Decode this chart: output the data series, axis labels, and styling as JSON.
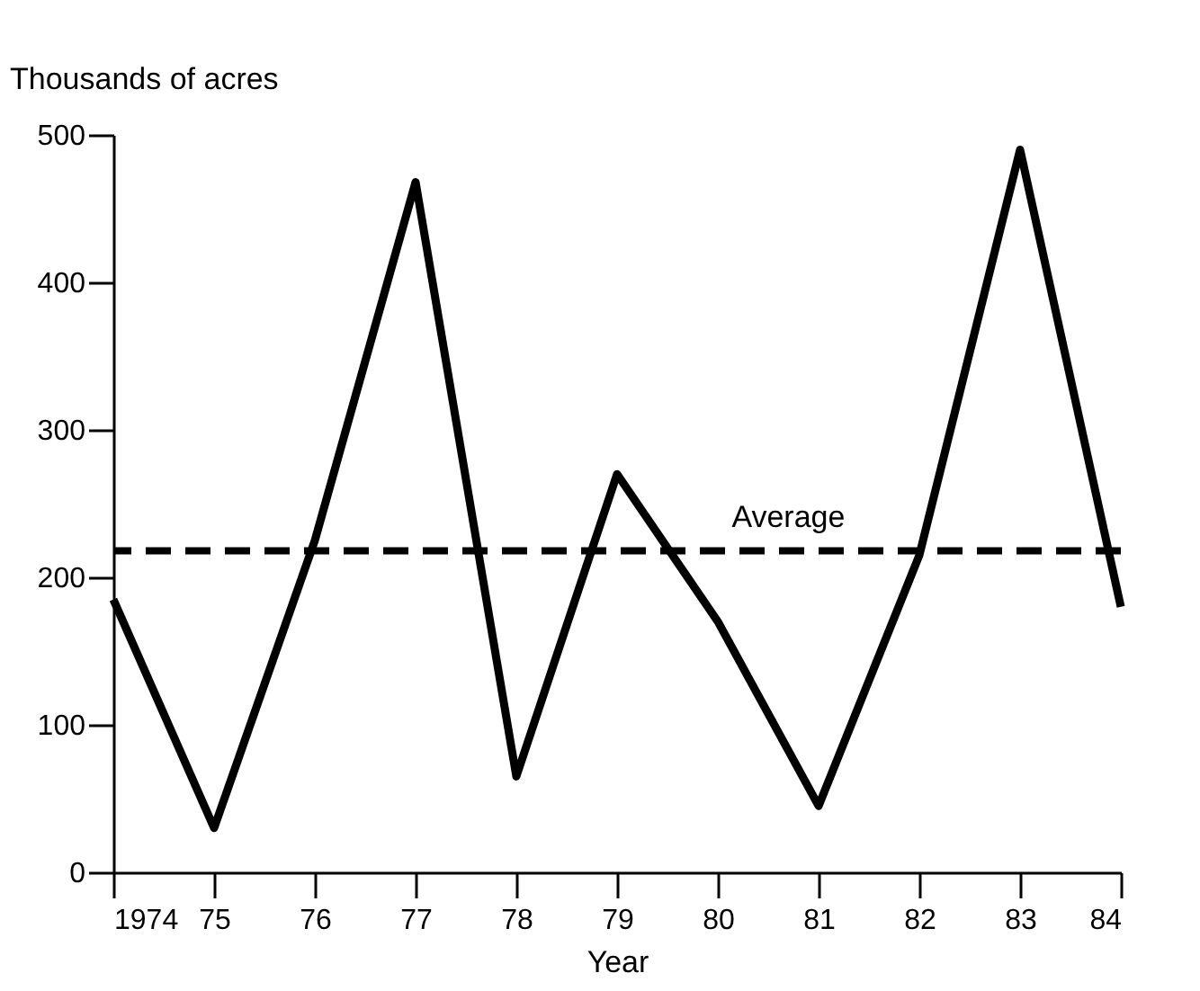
{
  "chart_data": {
    "type": "line",
    "categories": [
      "1974",
      "75",
      "76",
      "77",
      "78",
      "79",
      "80",
      "81",
      "82",
      "83",
      "84"
    ],
    "series": [
      {
        "color": "#000000",
        "values": [
          185,
          30,
          225,
          468,
          65,
          270,
          170,
          45,
          215,
          490,
          180
        ]
      }
    ],
    "xlabel": "Year",
    "ylabel": "Thousands of acres",
    "ylim": [
      0,
      500
    ],
    "yticks": [
      0,
      100,
      200,
      300,
      400,
      500
    ],
    "ref_lines": [
      {
        "axis": "y",
        "value": 218,
        "label": "Average",
        "color": "#000000",
        "line_style": "dashed"
      }
    ],
    "grid": false,
    "marker": "none",
    "line_style": "solid"
  }
}
